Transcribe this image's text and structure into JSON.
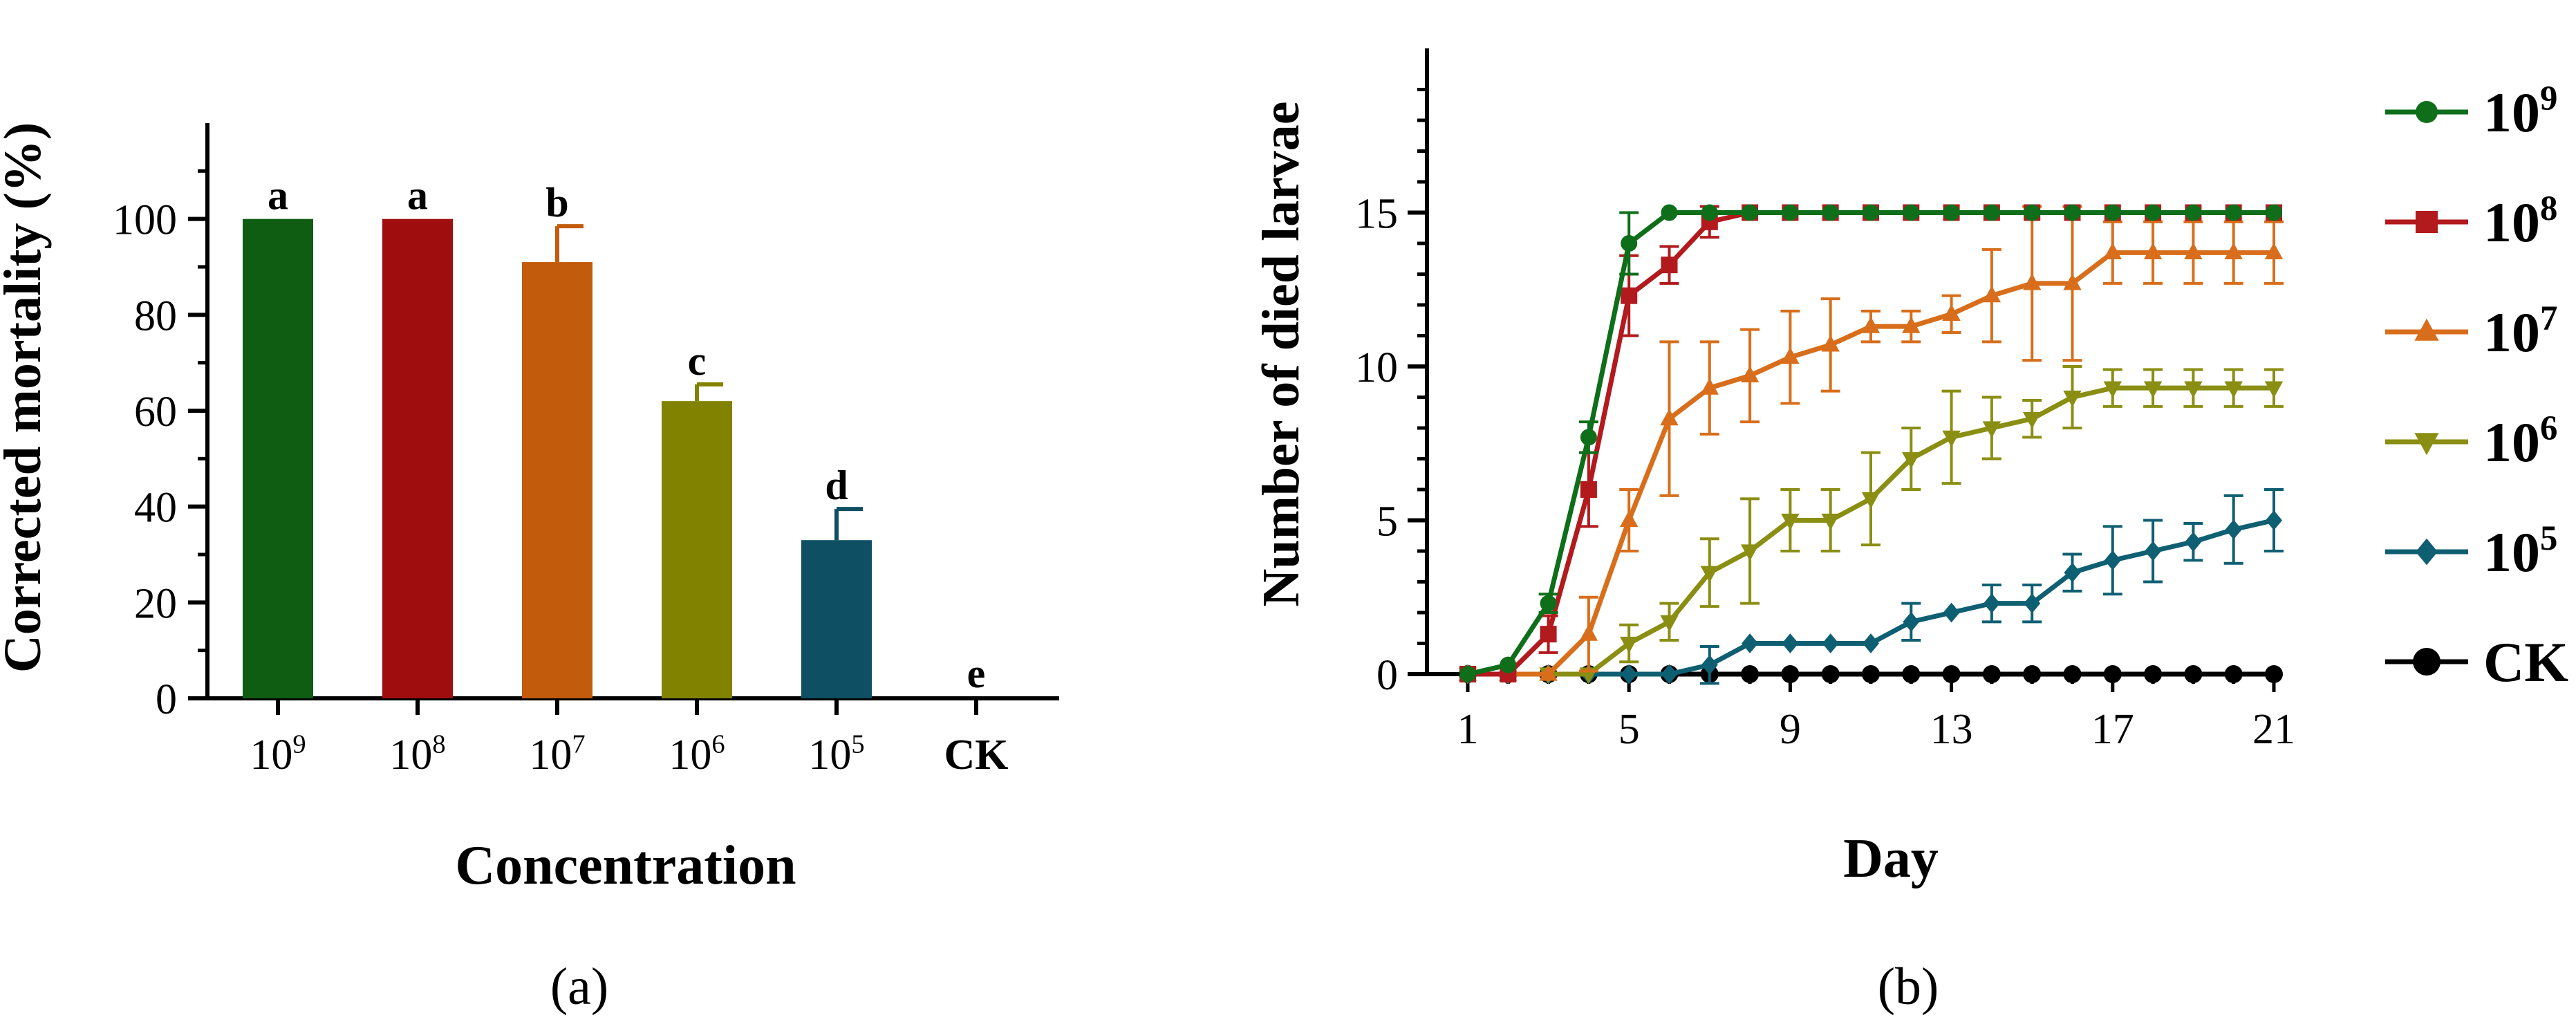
{
  "chart_data": [
    {
      "panel_label": "(a)",
      "type": "bar",
      "title": "",
      "xlabel": "Concentration",
      "ylabel": "Corrected mortality (%)",
      "ylim": [
        0,
        120
      ],
      "yticks": [
        0,
        20,
        40,
        60,
        80,
        100
      ],
      "yticks_labels": [
        "0",
        "20",
        "40",
        "60",
        "80",
        "100"
      ],
      "categories": [
        {
          "base": "10",
          "exp": "9"
        },
        {
          "base": "10",
          "exp": "8"
        },
        {
          "base": "10",
          "exp": "7"
        },
        {
          "base": "10",
          "exp": "6"
        },
        {
          "base": "10",
          "exp": "5"
        },
        {
          "base": "CK",
          "exp": ""
        }
      ],
      "values": [
        100,
        100,
        91,
        62,
        33,
        0
      ],
      "errors": [
        0,
        0,
        7.5,
        3.5,
        6.5,
        0
      ],
      "significance_letters": [
        "a",
        "a",
        "b",
        "c",
        "d",
        "e"
      ],
      "colors": [
        "#0f5d12",
        "#a00d0e",
        "#c25b0b",
        "#818200",
        "#0e4f63",
        "#000000"
      ],
      "grid": false
    },
    {
      "panel_label": "(b)",
      "type": "line",
      "title": "",
      "xlabel": "Day",
      "ylabel": "Number of died larvae",
      "xlim": [
        0,
        21.5
      ],
      "ylim": [
        0,
        20
      ],
      "xticks": [
        1,
        5,
        9,
        13,
        17,
        21
      ],
      "xticks_labels": [
        "1",
        "5",
        "9",
        "13",
        "17",
        "21"
      ],
      "yticks": [
        0,
        5,
        10,
        15
      ],
      "yticks_labels": [
        "0",
        "5",
        "10",
        "15"
      ],
      "x": [
        1,
        2,
        3,
        4,
        5,
        6,
        7,
        8,
        9,
        10,
        11,
        12,
        13,
        14,
        15,
        16,
        17,
        18,
        19,
        20,
        21
      ],
      "legend_position": "right",
      "grid": false,
      "series": [
        {
          "name": "10",
          "exp": "9",
          "color": "#0f6e1a",
          "marker": "circle",
          "values": [
            0,
            0.3,
            2.3,
            7.7,
            14,
            15,
            15,
            15,
            15,
            15,
            15,
            15,
            15,
            15,
            15,
            15,
            15,
            15,
            15,
            15,
            15
          ],
          "errors": [
            0,
            0,
            0.3,
            0.5,
            1,
            0,
            0,
            0,
            0,
            0,
            0,
            0,
            0,
            0,
            0,
            0,
            0,
            0,
            0,
            0,
            0
          ]
        },
        {
          "name": "10",
          "exp": "8",
          "color": "#b21a1e",
          "marker": "square",
          "values": [
            0,
            0,
            1.3,
            6,
            12.3,
            13.3,
            14.7,
            15,
            15,
            15,
            15,
            15,
            15,
            15,
            15,
            15,
            15,
            15,
            15,
            15,
            15
          ],
          "errors": [
            0,
            0,
            0.6,
            1.2,
            1.3,
            0.6,
            0.5,
            0,
            0,
            0,
            0,
            0,
            0,
            0,
            0,
            0,
            0,
            0,
            0,
            0,
            0
          ]
        },
        {
          "name": "10",
          "exp": "7",
          "color": "#d86e1b",
          "marker": "triangle-up",
          "values": [
            0,
            0,
            0,
            1.3,
            5,
            8.3,
            9.3,
            9.7,
            10.3,
            10.7,
            11.3,
            11.3,
            11.7,
            12.3,
            12.7,
            12.7,
            13.7,
            13.7,
            13.7,
            13.7,
            13.7
          ],
          "errors": [
            0,
            0,
            0,
            1.2,
            1,
            2.5,
            1.5,
            1.5,
            1.5,
            1.5,
            0.5,
            0.5,
            0.6,
            1.5,
            2.5,
            2.5,
            1,
            1,
            1,
            1,
            1
          ]
        },
        {
          "name": "10",
          "exp": "6",
          "color": "#8a8e12",
          "marker": "triangle-down",
          "values": [
            0,
            0,
            0,
            0,
            1,
            1.7,
            3.3,
            4,
            5,
            5,
            5.7,
            7,
            7.7,
            8,
            8.3,
            9,
            9.3,
            9.3,
            9.3,
            9.3,
            9.3
          ],
          "errors": [
            0,
            0,
            0,
            0,
            0.6,
            0.6,
            1.1,
            1.7,
            1,
            1,
            1.5,
            1,
            1.5,
            1,
            0.6,
            1,
            0.6,
            0.6,
            0.6,
            0.6,
            0.6
          ]
        },
        {
          "name": "10",
          "exp": "5",
          "color": "#0f5f73",
          "marker": "diamond",
          "values": [
            0,
            0,
            0,
            0,
            0,
            0,
            0.3,
            1,
            1,
            1,
            1,
            1.7,
            2,
            2.3,
            2.3,
            3.3,
            3.7,
            4,
            4.3,
            4.7,
            5
          ],
          "errors": [
            0,
            0,
            0,
            0,
            0,
            0,
            0.6,
            0,
            0,
            0,
            0,
            0.6,
            0,
            0.6,
            0.6,
            0.6,
            1.1,
            1,
            0.6,
            1.1,
            1
          ]
        },
        {
          "name": "CK",
          "exp": "",
          "color": "#000000",
          "marker": "circle",
          "values": [
            0,
            0,
            0,
            0,
            0,
            0,
            0,
            0,
            0,
            0,
            0,
            0,
            0,
            0,
            0,
            0,
            0,
            0,
            0,
            0,
            0
          ],
          "errors": [
            0,
            0,
            0,
            0,
            0,
            0,
            0,
            0,
            0,
            0,
            0,
            0,
            0,
            0,
            0,
            0,
            0,
            0,
            0,
            0,
            0
          ]
        }
      ]
    }
  ]
}
